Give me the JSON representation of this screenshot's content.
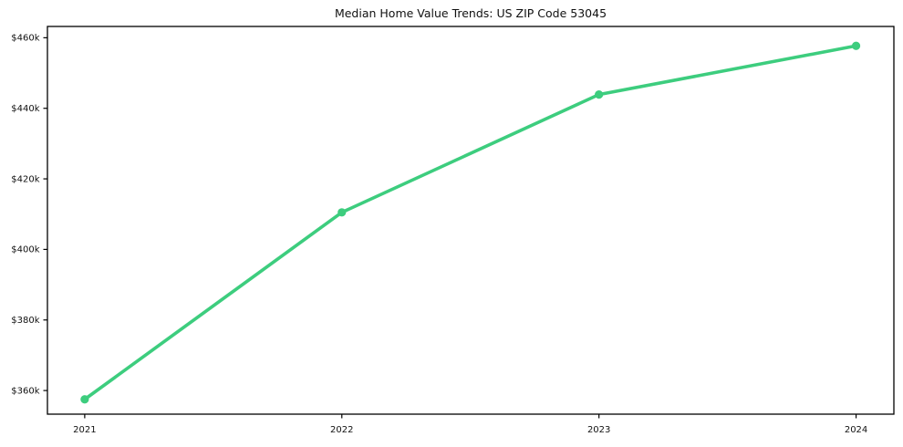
{
  "chart_data": {
    "type": "line",
    "title": "Median Home Value Trends: US ZIP Code 53045",
    "xlabel": "",
    "ylabel": "",
    "x": [
      2021,
      2022,
      2023,
      2024
    ],
    "x_tick_labels": [
      "2021",
      "2022",
      "2023",
      "2024"
    ],
    "y_ticks": [
      {
        "value": 360000,
        "label": "$360k"
      },
      {
        "value": 380000,
        "label": "$380k"
      },
      {
        "value": 400000,
        "label": "$400k"
      },
      {
        "value": 420000,
        "label": "$420k"
      },
      {
        "value": 440000,
        "label": "$440k"
      },
      {
        "value": 460000,
        "label": "$460k"
      }
    ],
    "xlim": [
      2020.855,
      2024.147
    ],
    "ylim": [
      353300,
      463200
    ],
    "grid": false,
    "legend": null,
    "series": [
      {
        "name": "Median home value",
        "values": [
          357500,
          410500,
          443900,
          457700
        ],
        "color": "#3dcd7e",
        "line_width": 3.6,
        "marker": "circle",
        "marker_radius": 4.6
      }
    ],
    "frame_color": "#000000",
    "text_color": "#111111"
  }
}
